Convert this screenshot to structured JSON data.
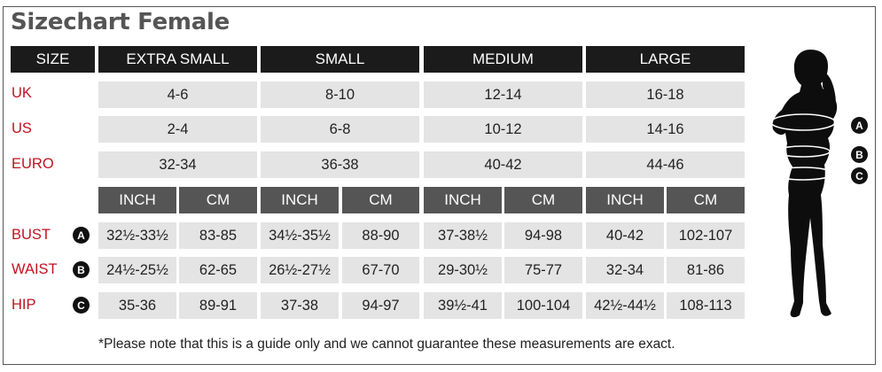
{
  "title": "Sizechart Female",
  "header": {
    "size_label": "SIZE",
    "sizes": [
      "EXTRA SMALL",
      "SMALL",
      "MEDIUM",
      "LARGE"
    ]
  },
  "regions": [
    {
      "label": "UK",
      "values": [
        "4-6",
        "8-10",
        "12-14",
        "16-18"
      ]
    },
    {
      "label": "US",
      "values": [
        "2-4",
        "6-8",
        "10-12",
        "14-16"
      ]
    },
    {
      "label": "EURO",
      "values": [
        "32-34",
        "36-38",
        "40-42",
        "44-46"
      ]
    }
  ],
  "units": [
    "INCH",
    "CM"
  ],
  "measurements": [
    {
      "label": "BUST",
      "badge": "A",
      "values": [
        "32½-33½",
        "83-85",
        "34½-35½",
        "88-90",
        "37-38½",
        "94-98",
        "40-42",
        "102-107"
      ]
    },
    {
      "label": "WAIST",
      "badge": "B",
      "values": [
        "24½-25½",
        "62-65",
        "26½-27½",
        "67-70",
        "29-30½",
        "75-77",
        "32-34",
        "81-86"
      ]
    },
    {
      "label": "HIP",
      "badge": "C",
      "values": [
        "35-36",
        "89-91",
        "37-38",
        "94-97",
        "39½-41",
        "100-104",
        "42½-44½",
        "108-113"
      ]
    }
  ],
  "figure_badges": [
    "A",
    "B",
    "C"
  ],
  "note": "*Please note that this is a guide only and we cannot guarantee these measurements are exact.",
  "colors": {
    "header": "#1b1b1b",
    "subheader": "#555555",
    "cell": "#e4e4e4",
    "label": "#c1121f",
    "title": "#555555"
  },
  "icon": "female-silhouette-icon"
}
